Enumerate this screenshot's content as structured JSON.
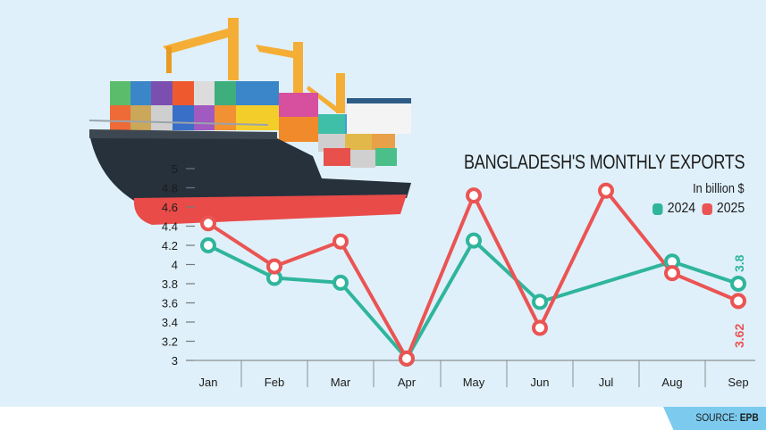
{
  "header": {
    "title": "BANGLADESH'S MONTHLY EXPORTS",
    "unit": "In billion $"
  },
  "legend": [
    {
      "label": "2024",
      "color": "#2fb59c"
    },
    {
      "label": "2025",
      "color": "#ea5453"
    }
  ],
  "source": {
    "prefix": "SOURCE:",
    "name": "EPB"
  },
  "annotations": {
    "last_2024": "3.8",
    "last_2025": "3.62"
  },
  "chart_data": {
    "type": "line",
    "title": "BANGLADESH'S MONTHLY EXPORTS",
    "subtitle": "In billion $",
    "xlabel": "",
    "ylabel": "",
    "categories": [
      "Jan",
      "Feb",
      "Mar",
      "Apr",
      "May",
      "Jun",
      "Jul",
      "Aug",
      "Sep"
    ],
    "yticks": [
      3,
      3.2,
      3.4,
      3.6,
      3.8,
      4,
      4.2,
      4.4,
      4.6,
      4.8,
      5
    ],
    "ylim": [
      3,
      5
    ],
    "grid": false,
    "legend_position": "top-right",
    "series": [
      {
        "name": "2024",
        "color": "#2fb59c",
        "values": [
          4.2,
          3.86,
          3.81,
          3.02,
          4.25,
          3.61,
          null,
          4.03,
          3.8
        ]
      },
      {
        "name": "2025",
        "color": "#ea5453",
        "values": [
          4.43,
          3.98,
          4.24,
          3.02,
          4.72,
          3.34,
          4.77,
          3.91,
          3.62
        ]
      }
    ],
    "annotations": [
      {
        "series": "2024",
        "x": "Sep",
        "text": "3.8"
      },
      {
        "series": "2025",
        "x": "Sep",
        "text": "3.62"
      }
    ]
  }
}
